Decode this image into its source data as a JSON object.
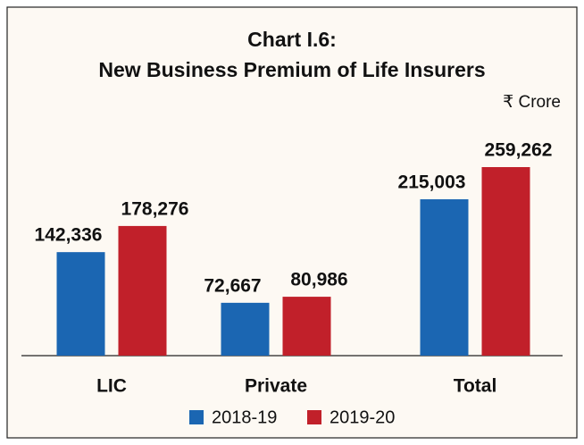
{
  "chart_data": {
    "type": "bar",
    "title": [
      "Chart I.6:",
      "New Business Premium of Life Insurers"
    ],
    "unit": "₹ Crore",
    "categories": [
      "LIC",
      "Private",
      "Total"
    ],
    "series": [
      {
        "name": "2018-19",
        "color": "#1b66b2",
        "values": [
          142336,
          72667,
          215003
        ],
        "value_labels": [
          "142,336",
          "72,667",
          "215,003"
        ]
      },
      {
        "name": "2019-20",
        "color": "#c1202a",
        "values": [
          178276,
          80986,
          259262
        ],
        "value_labels": [
          "178,276",
          "80,986",
          "259,262"
        ]
      }
    ]
  }
}
